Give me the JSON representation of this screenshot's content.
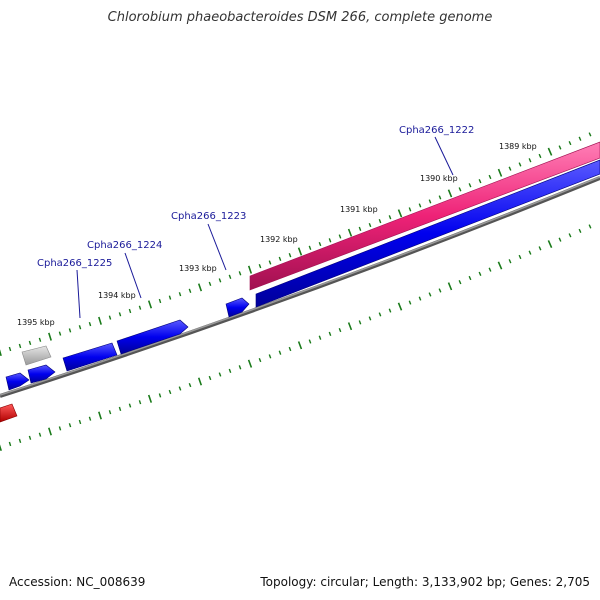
{
  "title": "Chlorobium phaeobacteroides DSM 266, complete genome",
  "footer": {
    "accession": "Accession: NC_008639",
    "summary": "Topology: circular; Length: 3,133,902 bp; Genes: 2,705"
  },
  "colors": {
    "backbone": "#808080",
    "tick": "#1a7a1a",
    "gene_forward": "#0000ee",
    "gene_highlight": "#ee2277",
    "gene_pseudo": "#b0b0b0",
    "gene_rna": "#ee0000",
    "label": "#1a1a99"
  },
  "ticks": [
    {
      "label": "1389 kbp"
    },
    {
      "label": "1390 kbp"
    },
    {
      "label": "1391 kbp"
    },
    {
      "label": "1392 kbp"
    },
    {
      "label": "1393 kbp"
    },
    {
      "label": "1394 kbp"
    },
    {
      "label": "1395 kbp"
    }
  ],
  "gene_labels": [
    {
      "label": "Cpha266_1222"
    },
    {
      "label": "Cpha266_1223"
    },
    {
      "label": "Cpha266_1224"
    },
    {
      "label": "Cpha266_1225"
    }
  ]
}
